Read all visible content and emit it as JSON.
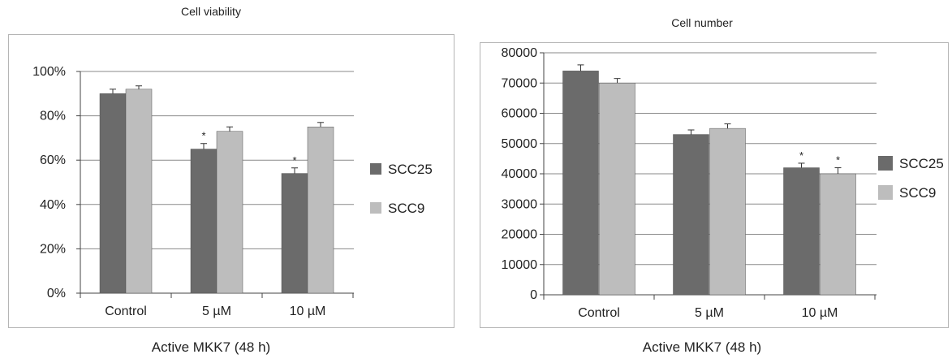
{
  "chart_data": [
    {
      "type": "bar",
      "title": "Cell viability",
      "xlabel": "Active MKK7 (48 h)",
      "ylabel": "",
      "categories": [
        "Control",
        "5 µM",
        "10 µM"
      ],
      "y_ticks": [
        "0%",
        "20%",
        "40%",
        "60%",
        "80%",
        "100%"
      ],
      "ylim": [
        0,
        100
      ],
      "unit": "%",
      "grid": true,
      "legend_position": "right",
      "series": [
        {
          "name": "SCC25",
          "color": "#6b6b6b",
          "values": [
            90,
            65,
            54
          ],
          "errors": [
            2,
            2.5,
            2.5
          ],
          "significant": [
            false,
            true,
            true
          ]
        },
        {
          "name": "SCC9",
          "color": "#bdbdbd",
          "values": [
            92,
            73,
            75
          ],
          "errors": [
            1.5,
            2,
            2
          ],
          "significant": [
            false,
            false,
            false
          ]
        }
      ],
      "significance_marker": "*"
    },
    {
      "type": "bar",
      "title": "Cell number",
      "xlabel": "Active MKK7 (48 h)",
      "ylabel": "",
      "categories": [
        "Control",
        "5 µM",
        "10 µM"
      ],
      "y_ticks": [
        "0",
        "10000",
        "20000",
        "30000",
        "40000",
        "50000",
        "60000",
        "70000",
        "80000"
      ],
      "ylim": [
        0,
        80000
      ],
      "unit": "",
      "grid": true,
      "legend_position": "right",
      "series": [
        {
          "name": "SCC25",
          "color": "#6b6b6b",
          "values": [
            74000,
            53000,
            42000
          ],
          "errors": [
            2000,
            1500,
            1500
          ],
          "significant": [
            false,
            false,
            true
          ]
        },
        {
          "name": "SCC9",
          "color": "#bdbdbd",
          "values": [
            70000,
            55000,
            40000
          ],
          "errors": [
            1500,
            1500,
            2000
          ],
          "significant": [
            false,
            false,
            true
          ]
        }
      ],
      "significance_marker": "*"
    }
  ]
}
